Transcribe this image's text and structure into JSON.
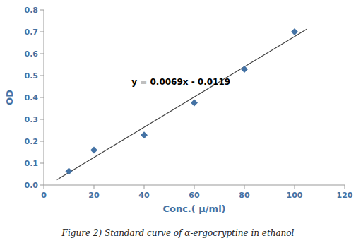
{
  "chart_data": {
    "type": "scatter",
    "x": [
      10,
      20,
      40,
      60,
      80,
      100
    ],
    "values": [
      0.063,
      0.16,
      0.228,
      0.376,
      0.529,
      0.7
    ],
    "color": "#4472a4",
    "marker": "diamond",
    "regression_line": {
      "x": [
        5,
        105
      ],
      "values": [
        0.0226,
        0.7126
      ],
      "color": "#404040"
    },
    "annotations": [
      {
        "text": "y = 0.0069x - 0.0119",
        "x": 35,
        "y": 0.47
      }
    ],
    "xlabel": "Conc.( μ/ml)",
    "ylabel": "OD",
    "label_color": "#4472a4",
    "background": "#ffffff",
    "grid": false,
    "xlim": [
      0,
      120
    ],
    "ylim": [
      0,
      0.8
    ],
    "xticks": [
      0,
      20,
      40,
      60,
      80,
      100,
      120
    ],
    "yticks": [
      {
        "value": 0,
        "label": "0.0"
      },
      0.1,
      0.2,
      0.3,
      0.4,
      0.5,
      0.6,
      0.7,
      0.8
    ],
    "caption": "Figure 2) Standard curve of α-ergocryptine in ethanol"
  }
}
